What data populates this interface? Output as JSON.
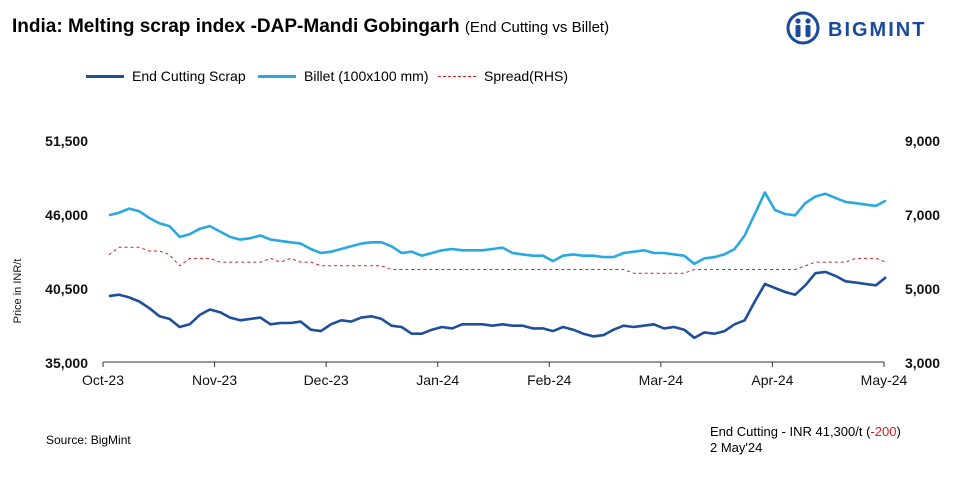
{
  "header": {
    "title": "India: Melting scrap index -DAP-Mandi Gobingarh",
    "subtitle": "(End Cutting vs Billet)"
  },
  "brand": {
    "name": "BIGMINT",
    "color": "#1a4a9c"
  },
  "legend": [
    {
      "label": "End Cutting Scrap",
      "color": "#1f4e9a",
      "style": "solid"
    },
    {
      "label": "Billet (100x100 mm)",
      "color": "#2aa8df",
      "style": "solid"
    },
    {
      "label": "Spread(RHS)",
      "color": "#d62020",
      "style": "dashed"
    }
  ],
  "footer": {
    "source": "Source: BigMint",
    "note_prefix": "End Cutting - INR 41,300/t (",
    "note_change": "-200",
    "note_suffix": ")",
    "note_date": "2 May'24"
  },
  "chart_data": {
    "type": "line",
    "ylabel": "Price in INR/t",
    "x_ticks": [
      "Oct-23",
      "Nov-23",
      "Dec-23",
      "Jan-24",
      "Feb-24",
      "Mar-24",
      "Apr-24",
      "May-24"
    ],
    "y_ticks": [
      "35,000",
      "40,500",
      "46,000",
      "51,500"
    ],
    "y2_ticks": [
      "3,000",
      "5,000",
      "7,000",
      "9,000"
    ],
    "ylim": [
      35000,
      51500
    ],
    "y2lim": [
      3000,
      9000
    ],
    "grid": false,
    "legend_position": "top-left",
    "x_points_note": "values sampled approximately every 3 days from Oct-23 to May-24",
    "series": [
      {
        "name": "End Cutting Scrap",
        "axis": "left",
        "color": "#1f4e9a",
        "values": [
          39900,
          40000,
          39800,
          39500,
          39000,
          38400,
          38200,
          37600,
          37800,
          38500,
          38900,
          38700,
          38300,
          38100,
          38200,
          38300,
          37800,
          37900,
          37900,
          38000,
          37400,
          37300,
          37800,
          38100,
          38000,
          38300,
          38400,
          38200,
          37700,
          37600,
          37100,
          37100,
          37400,
          37600,
          37500,
          37800,
          37800,
          37800,
          37700,
          37800,
          37700,
          37700,
          37500,
          37500,
          37300,
          37600,
          37400,
          37100,
          36900,
          37000,
          37400,
          37700,
          37600,
          37700,
          37800,
          37500,
          37600,
          37400,
          36800,
          37200,
          37100,
          37300,
          37800,
          38100,
          39500,
          40800,
          40500,
          40200,
          40000,
          40700,
          41600,
          41700,
          41400,
          41000,
          40900,
          40800,
          40700,
          41300
        ]
      },
      {
        "name": "Billet (100x100 mm)",
        "axis": "left",
        "color": "#2aa8df",
        "values": [
          45900,
          46100,
          46400,
          46200,
          45700,
          45300,
          45100,
          44300,
          44500,
          44900,
          45100,
          44700,
          44300,
          44100,
          44200,
          44400,
          44100,
          44000,
          43900,
          43800,
          43400,
          43100,
          43200,
          43400,
          43600,
          43800,
          43900,
          43900,
          43600,
          43100,
          43200,
          42900,
          43100,
          43300,
          43400,
          43300,
          43300,
          43300,
          43400,
          43500,
          43100,
          43000,
          42900,
          42900,
          42500,
          42900,
          43000,
          42900,
          42900,
          42800,
          42800,
          43100,
          43200,
          43300,
          43100,
          43100,
          43000,
          42900,
          42300,
          42700,
          42800,
          43000,
          43400,
          44400,
          46000,
          47600,
          46300,
          46000,
          45900,
          46800,
          47300,
          47500,
          47200,
          46900,
          46800,
          46700,
          46600,
          47000
        ]
      },
      {
        "name": "Spread(RHS)",
        "axis": "right",
        "color": "#d62020",
        "values": [
          5900,
          6100,
          6100,
          6100,
          6000,
          6000,
          5900,
          5600,
          5800,
          5800,
          5800,
          5700,
          5700,
          5700,
          5700,
          5700,
          5800,
          5700,
          5800,
          5700,
          5700,
          5600,
          5600,
          5600,
          5600,
          5600,
          5600,
          5600,
          5500,
          5500,
          5500,
          5500,
          5500,
          5500,
          5500,
          5500,
          5500,
          5500,
          5500,
          5500,
          5500,
          5500,
          5500,
          5500,
          5500,
          5500,
          5500,
          5500,
          5500,
          5500,
          5500,
          5500,
          5400,
          5400,
          5400,
          5400,
          5400,
          5400,
          5500,
          5500,
          5500,
          5500,
          5500,
          5500,
          5500,
          5500,
          5500,
          5500,
          5500,
          5600,
          5700,
          5700,
          5700,
          5700,
          5800,
          5800,
          5800,
          5700
        ]
      }
    ]
  }
}
